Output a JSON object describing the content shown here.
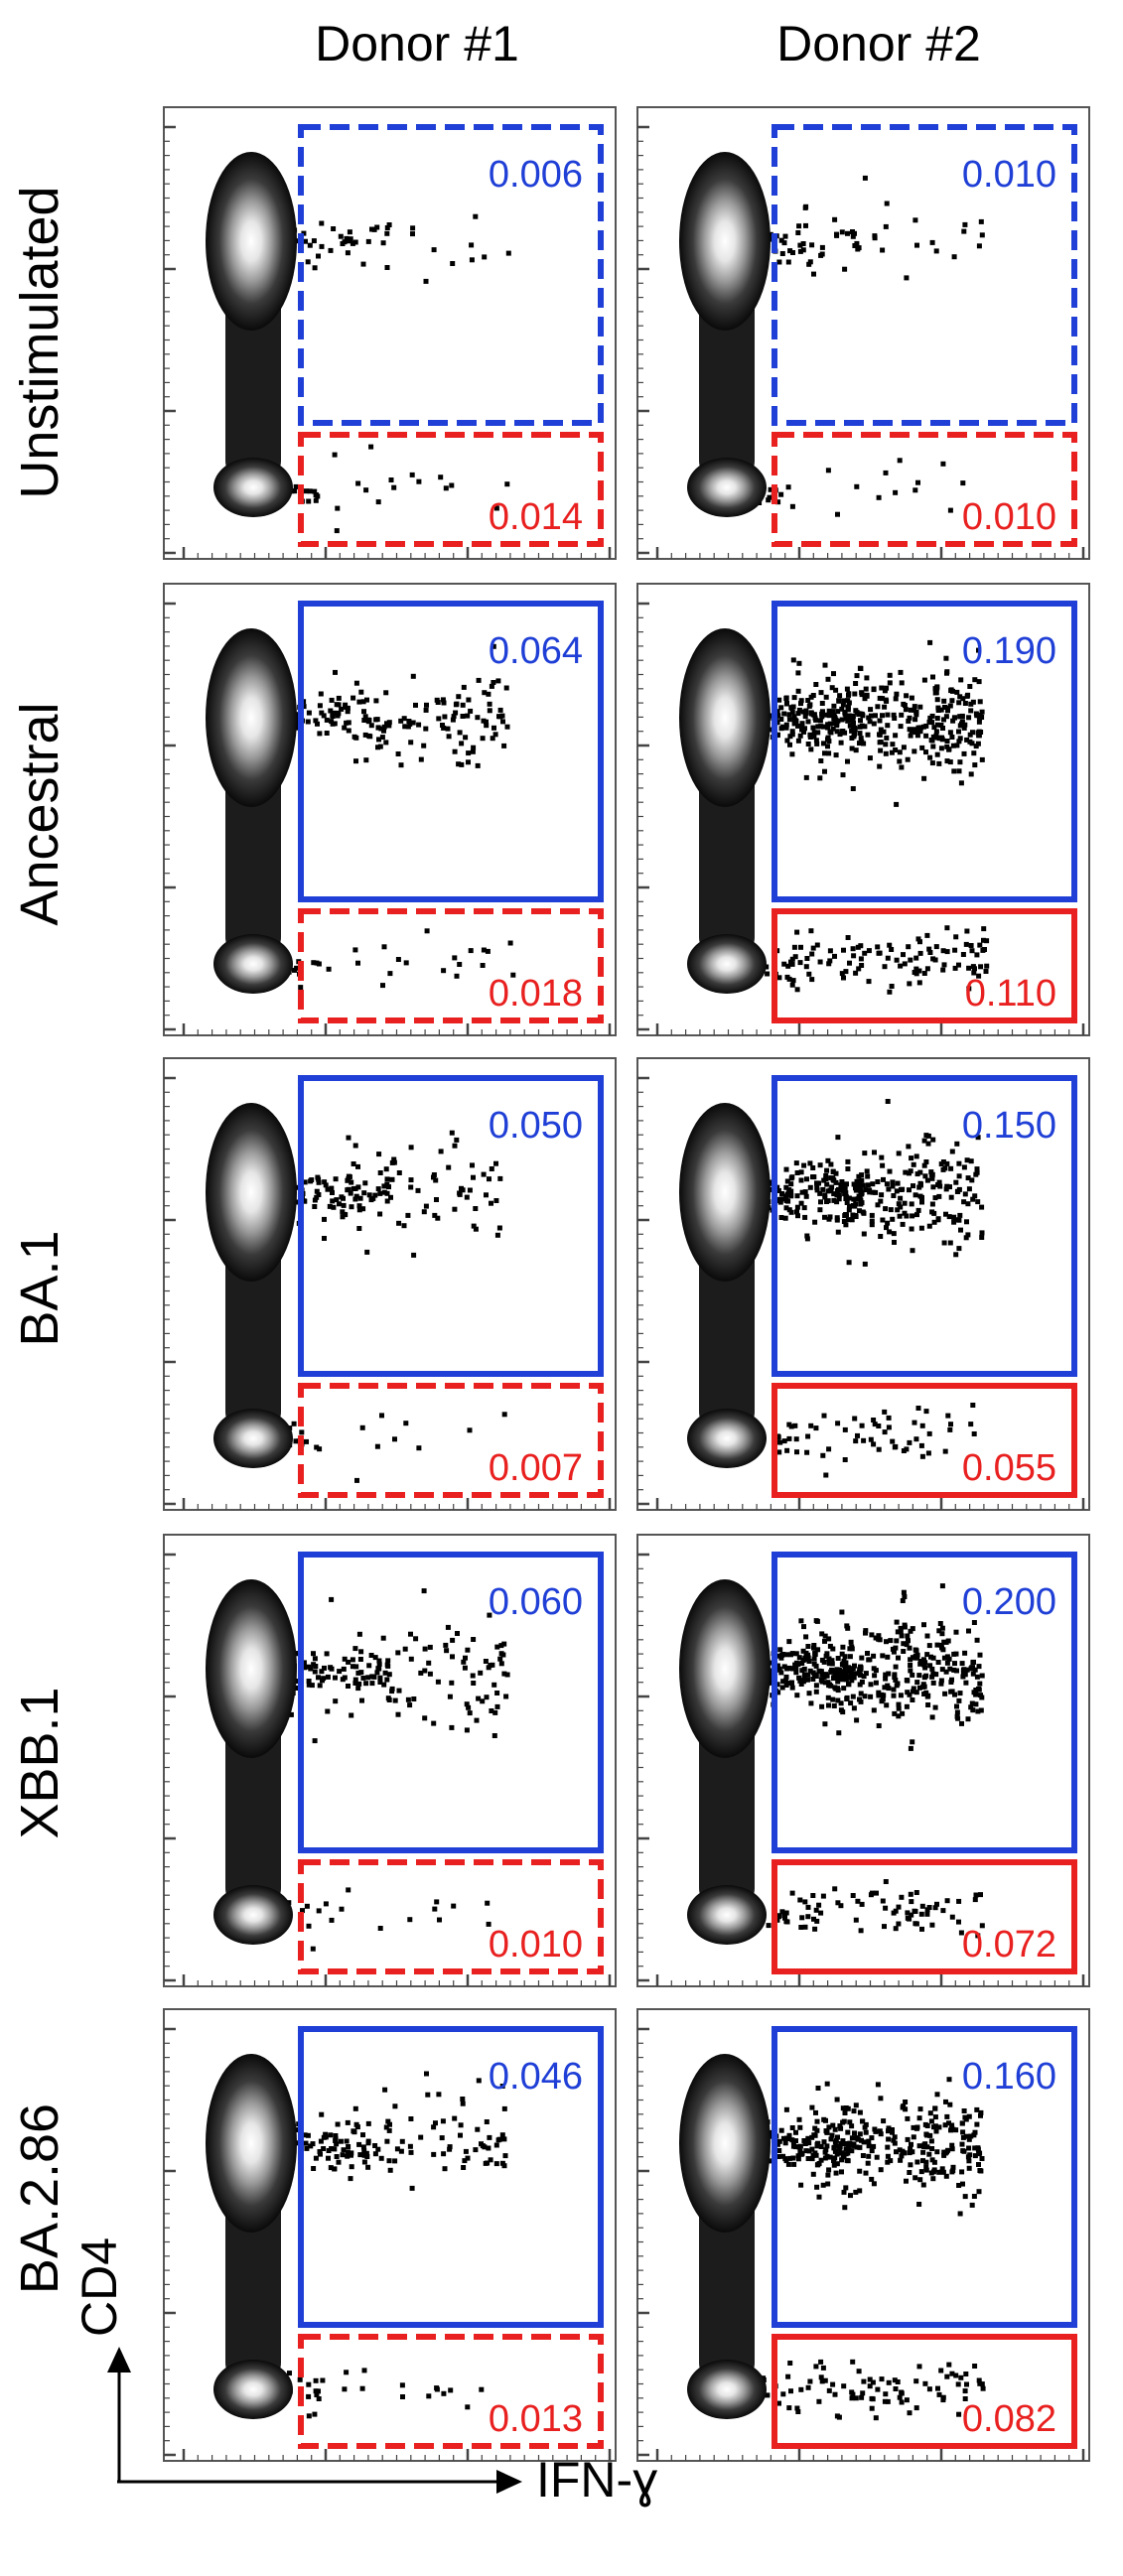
{
  "chart_data": {
    "type": "scatter",
    "description_axes": {
      "x": "IFN-ɣ",
      "y": "CD4"
    },
    "columns": [
      "Donor #1",
      "Donor #2"
    ],
    "rows": [
      "Unstimulated",
      "Ancestral",
      "BA.1",
      "XBB.1",
      "BA.2.86"
    ],
    "colors": {
      "cd4_positive_gate": "#1f3fd6",
      "cd4_negative_gate": "#e8201f"
    },
    "panels": [
      {
        "row": "Unstimulated",
        "column": "Donor #1",
        "cd4_positive_gate": {
          "value": "0.006",
          "style": "dashed"
        },
        "cd4_negative_gate": {
          "value": "0.014",
          "style": "dashed"
        }
      },
      {
        "row": "Unstimulated",
        "column": "Donor #2",
        "cd4_positive_gate": {
          "value": "0.010",
          "style": "dashed"
        },
        "cd4_negative_gate": {
          "value": "0.010",
          "style": "dashed"
        }
      },
      {
        "row": "Ancestral",
        "column": "Donor #1",
        "cd4_positive_gate": {
          "value": "0.064",
          "style": "solid"
        },
        "cd4_negative_gate": {
          "value": "0.018",
          "style": "dashed"
        }
      },
      {
        "row": "Ancestral",
        "column": "Donor #2",
        "cd4_positive_gate": {
          "value": "0.190",
          "style": "solid"
        },
        "cd4_negative_gate": {
          "value": "0.110",
          "style": "solid"
        }
      },
      {
        "row": "BA.1",
        "column": "Donor #1",
        "cd4_positive_gate": {
          "value": "0.050",
          "style": "solid"
        },
        "cd4_negative_gate": {
          "value": "0.007",
          "style": "dashed"
        }
      },
      {
        "row": "BA.1",
        "column": "Donor #2",
        "cd4_positive_gate": {
          "value": "0.150",
          "style": "solid"
        },
        "cd4_negative_gate": {
          "value": "0.055",
          "style": "solid"
        }
      },
      {
        "row": "XBB.1",
        "column": "Donor #1",
        "cd4_positive_gate": {
          "value": "0.060",
          "style": "solid"
        },
        "cd4_negative_gate": {
          "value": "0.010",
          "style": "dashed"
        }
      },
      {
        "row": "XBB.1",
        "column": "Donor #2",
        "cd4_positive_gate": {
          "value": "0.200",
          "style": "solid"
        },
        "cd4_negative_gate": {
          "value": "0.072",
          "style": "solid"
        }
      },
      {
        "row": "BA.2.86",
        "column": "Donor #1",
        "cd4_positive_gate": {
          "value": "0.046",
          "style": "solid"
        },
        "cd4_negative_gate": {
          "value": "0.013",
          "style": "dashed"
        }
      },
      {
        "row": "BA.2.86",
        "column": "Donor #2",
        "cd4_positive_gate": {
          "value": "0.160",
          "style": "solid"
        },
        "cd4_negative_gate": {
          "value": "0.082",
          "style": "solid"
        }
      }
    ]
  }
}
